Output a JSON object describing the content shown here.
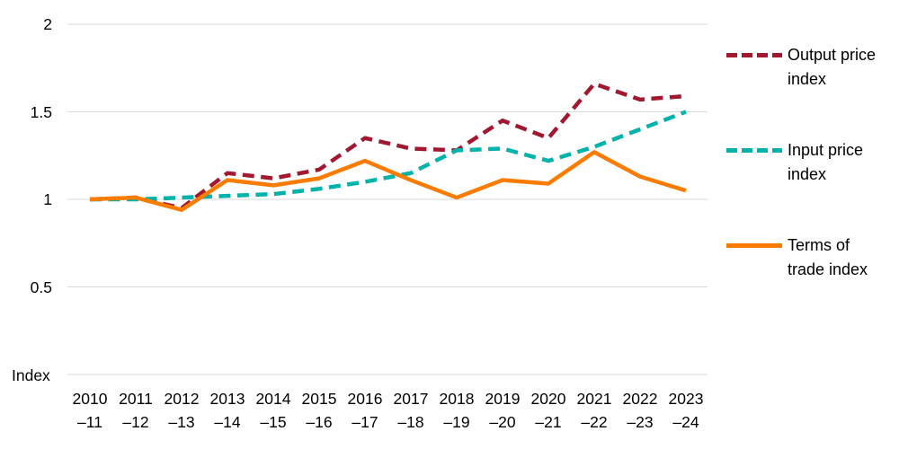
{
  "y_axis_title": "Index",
  "chart_data": {
    "type": "line",
    "title": "",
    "xlabel": "",
    "ylabel": "Index",
    "ylim": [
      0,
      2
    ],
    "grid": "horizontal",
    "gridline_color": "#D9D9D9",
    "gridline_values": [
      0,
      0.5,
      1,
      1.5,
      2
    ],
    "yticks": [
      {
        "label": "2",
        "value": 2
      },
      {
        "label": "1.5",
        "value": 1.5
      },
      {
        "label": "1",
        "value": 1
      },
      {
        "label": "0.5",
        "value": 0.5
      }
    ],
    "categories": [
      "2010–11",
      "2011–12",
      "2012–13",
      "2013–14",
      "2014–15",
      "2015–16",
      "2016–17",
      "2017–18",
      "2018–19",
      "2019–20",
      "2020–21",
      "2021–22",
      "2022–23",
      "2023–24"
    ],
    "category_label_lines": [
      [
        "2010",
        "–11"
      ],
      [
        "2011",
        "–12"
      ],
      [
        "2012",
        "–13"
      ],
      [
        "2013",
        "–14"
      ],
      [
        "2014",
        "–15"
      ],
      [
        "2015",
        "–16"
      ],
      [
        "2016",
        "–17"
      ],
      [
        "2017",
        "–18"
      ],
      [
        "2018",
        "–19"
      ],
      [
        "2019",
        "–20"
      ],
      [
        "2020",
        "–21"
      ],
      [
        "2021",
        "–22"
      ],
      [
        "2022",
        "–23"
      ],
      [
        "2023",
        "–24"
      ]
    ],
    "legend_position": "right",
    "series": [
      {
        "name": "Output price index",
        "color": "#A11931",
        "line_style": "dashed",
        "values": [
          1.0,
          1.01,
          0.95,
          1.15,
          1.12,
          1.17,
          1.35,
          1.29,
          1.28,
          1.45,
          1.35,
          1.66,
          1.57,
          1.59
        ]
      },
      {
        "name": "Input price index",
        "color": "#00B2A9",
        "line_style": "dashed",
        "values": [
          1.0,
          1.0,
          1.01,
          1.02,
          1.03,
          1.06,
          1.1,
          1.15,
          1.28,
          1.29,
          1.22,
          1.3,
          1.4,
          1.5
        ]
      },
      {
        "name": "Terms of trade index",
        "color": "#F97C00",
        "line_style": "solid",
        "values": [
          1.0,
          1.01,
          0.94,
          1.11,
          1.08,
          1.12,
          1.22,
          1.11,
          1.01,
          1.11,
          1.09,
          1.27,
          1.13,
          1.05
        ]
      }
    ]
  },
  "legend": {
    "items": [
      {
        "label_lines": [
          "Output price",
          "index"
        ],
        "color": "#A11931",
        "dashed": true
      },
      {
        "label_lines": [
          "Input price",
          "index"
        ],
        "color": "#00B2A9",
        "dashed": true
      },
      {
        "label_lines": [
          "Terms of",
          "trade index"
        ],
        "color": "#F97C00",
        "dashed": false
      }
    ]
  }
}
